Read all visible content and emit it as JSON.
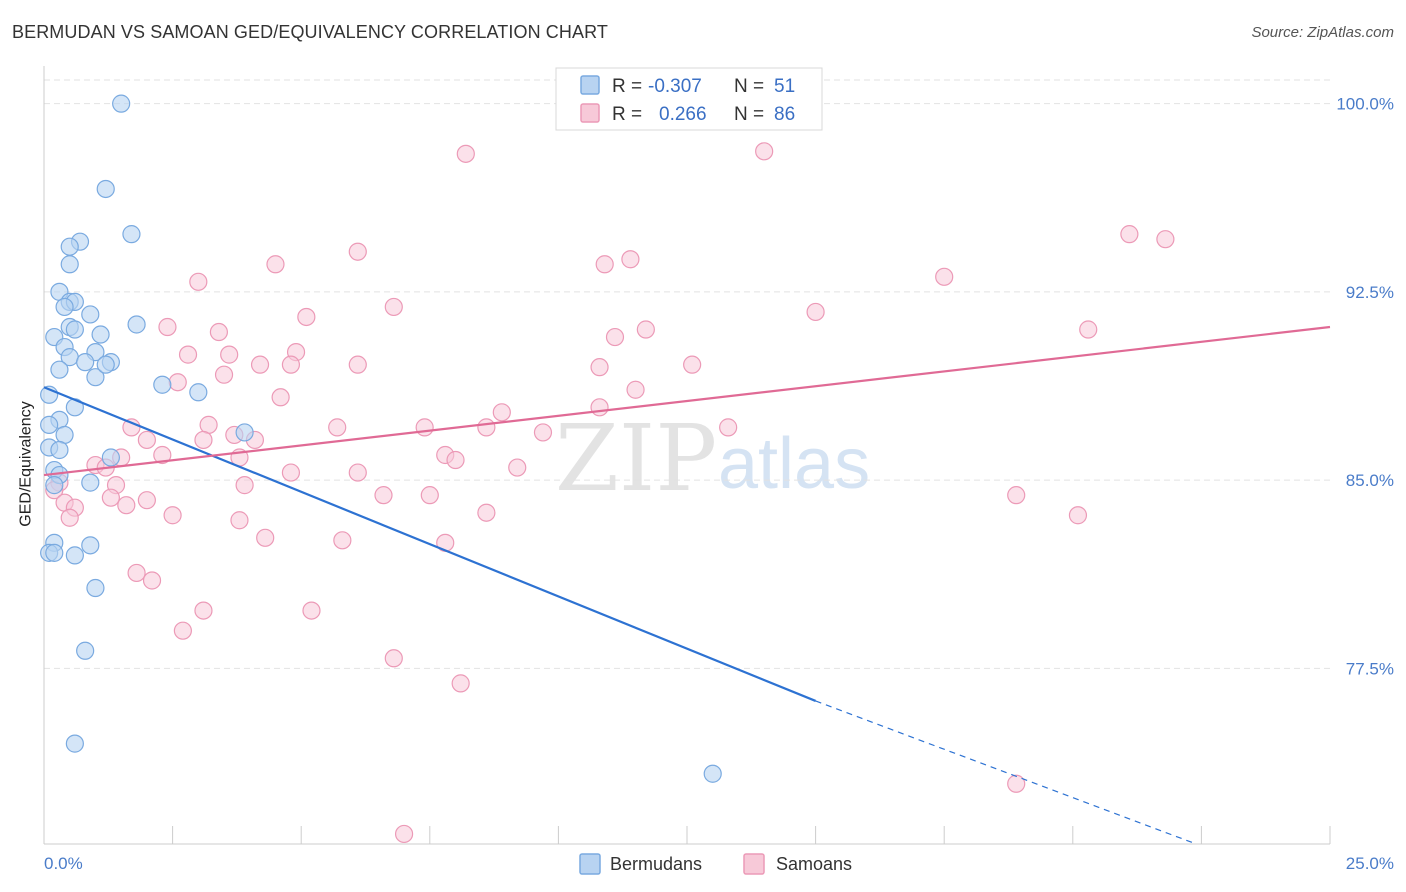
{
  "title": "BERMUDAN VS SAMOAN GED/EQUIVALENCY CORRELATION CHART",
  "source": "Source: ZipAtlas.com",
  "watermark": {
    "zip": "ZIP",
    "atlas": "atlas"
  },
  "colors": {
    "blue": "#7aaae0",
    "blue_fill": "#b8d3f1",
    "blue_line": "#2d72d2",
    "pink": "#ec9ab7",
    "pink_fill": "#f7c9d8",
    "pink_line": "#e06a95",
    "tick_text": "#4a7cc9"
  },
  "legend": {
    "rows": [
      {
        "r_label": "R =",
        "r_value": "-0.307",
        "n_label": "N =",
        "n_value": "51"
      },
      {
        "r_label": "R =",
        "r_value": "0.266",
        "n_label": "N =",
        "n_value": "86"
      }
    ]
  },
  "bottom_legend": [
    "Bermudans",
    "Samoans"
  ],
  "chart_data": {
    "type": "scatter",
    "title": "BERMUDAN VS SAMOAN GED/EQUIVALENCY CORRELATION CHART",
    "xlabel": "",
    "ylabel": "GED/Equivalency",
    "xlim": [
      0,
      25
    ],
    "ylim": [
      70.5,
      101.5
    ],
    "x_tick_labels": [
      "0.0%",
      "25.0%"
    ],
    "y_ticks": [
      77.5,
      85.0,
      92.5,
      100.0
    ],
    "y_tick_labels": [
      "77.5%",
      "85.0%",
      "92.5%",
      "100.0%"
    ],
    "series": [
      {
        "name": "Bermudans",
        "trend": {
          "x0": 0,
          "y0": 88.7,
          "x1": 15,
          "y1": 76.2,
          "dash_to_x": 22.4,
          "dash_to_y": 70.5
        },
        "points": [
          [
            1.5,
            100.0
          ],
          [
            1.2,
            96.6
          ],
          [
            1.7,
            94.8
          ],
          [
            0.7,
            94.5
          ],
          [
            0.5,
            94.3
          ],
          [
            0.5,
            93.6
          ],
          [
            0.3,
            92.5
          ],
          [
            0.5,
            92.1
          ],
          [
            0.6,
            92.1
          ],
          [
            0.4,
            91.9
          ],
          [
            0.9,
            91.6
          ],
          [
            0.5,
            91.1
          ],
          [
            1.8,
            91.2
          ],
          [
            1.1,
            90.8
          ],
          [
            0.6,
            91.0
          ],
          [
            0.2,
            90.7
          ],
          [
            0.4,
            90.3
          ],
          [
            1.0,
            90.1
          ],
          [
            0.5,
            89.9
          ],
          [
            0.8,
            89.7
          ],
          [
            1.3,
            89.7
          ],
          [
            0.3,
            89.4
          ],
          [
            1.0,
            89.1
          ],
          [
            1.2,
            89.6
          ],
          [
            2.3,
            88.8
          ],
          [
            3.0,
            88.5
          ],
          [
            0.1,
            88.4
          ],
          [
            0.6,
            87.9
          ],
          [
            0.3,
            87.4
          ],
          [
            0.1,
            87.2
          ],
          [
            0.4,
            86.8
          ],
          [
            3.9,
            86.9
          ],
          [
            0.1,
            86.3
          ],
          [
            0.3,
            86.2
          ],
          [
            1.3,
            85.9
          ],
          [
            0.2,
            85.4
          ],
          [
            0.3,
            85.2
          ],
          [
            0.9,
            84.9
          ],
          [
            0.2,
            84.8
          ],
          [
            0.9,
            82.4
          ],
          [
            0.2,
            82.5
          ],
          [
            0.1,
            82.1
          ],
          [
            0.2,
            82.1
          ],
          [
            0.6,
            82.0
          ],
          [
            1.0,
            80.7
          ],
          [
            0.8,
            78.2
          ],
          [
            0.6,
            74.5
          ],
          [
            13.0,
            73.3
          ]
        ]
      },
      {
        "name": "Samoans",
        "trend": {
          "x0": 0,
          "y0": 85.2,
          "x1": 25,
          "y1": 91.1
        },
        "points": [
          [
            8.2,
            98.0
          ],
          [
            14.0,
            98.1
          ],
          [
            21.1,
            94.8
          ],
          [
            21.8,
            94.6
          ],
          [
            6.1,
            94.1
          ],
          [
            11.4,
            93.8
          ],
          [
            4.5,
            93.6
          ],
          [
            10.9,
            93.6
          ],
          [
            17.5,
            93.1
          ],
          [
            3.0,
            92.9
          ],
          [
            6.8,
            91.9
          ],
          [
            15.0,
            91.7
          ],
          [
            5.1,
            91.5
          ],
          [
            2.4,
            91.1
          ],
          [
            3.4,
            90.9
          ],
          [
            11.7,
            91.0
          ],
          [
            20.3,
            91.0
          ],
          [
            11.1,
            90.7
          ],
          [
            4.9,
            90.1
          ],
          [
            2.8,
            90.0
          ],
          [
            3.6,
            90.0
          ],
          [
            4.8,
            89.6
          ],
          [
            6.1,
            89.6
          ],
          [
            4.2,
            89.6
          ],
          [
            10.8,
            89.5
          ],
          [
            12.6,
            89.6
          ],
          [
            3.5,
            89.2
          ],
          [
            2.6,
            88.9
          ],
          [
            11.5,
            88.6
          ],
          [
            4.6,
            88.3
          ],
          [
            10.8,
            87.9
          ],
          [
            8.9,
            87.7
          ],
          [
            1.7,
            87.1
          ],
          [
            3.2,
            87.2
          ],
          [
            5.7,
            87.1
          ],
          [
            7.4,
            87.1
          ],
          [
            8.6,
            87.1
          ],
          [
            13.3,
            87.1
          ],
          [
            9.7,
            86.9
          ],
          [
            3.7,
            86.8
          ],
          [
            2.0,
            86.6
          ],
          [
            3.1,
            86.6
          ],
          [
            4.1,
            86.6
          ],
          [
            2.3,
            86.0
          ],
          [
            1.5,
            85.9
          ],
          [
            3.8,
            85.9
          ],
          [
            7.8,
            86.0
          ],
          [
            8.0,
            85.8
          ],
          [
            1.0,
            85.6
          ],
          [
            1.2,
            85.5
          ],
          [
            4.8,
            85.3
          ],
          [
            6.1,
            85.3
          ],
          [
            9.2,
            85.5
          ],
          [
            0.3,
            84.9
          ],
          [
            1.4,
            84.8
          ],
          [
            3.9,
            84.8
          ],
          [
            0.2,
            84.6
          ],
          [
            1.3,
            84.3
          ],
          [
            2.0,
            84.2
          ],
          [
            6.6,
            84.4
          ],
          [
            7.5,
            84.4
          ],
          [
            0.4,
            84.1
          ],
          [
            1.6,
            84.0
          ],
          [
            0.6,
            83.9
          ],
          [
            2.5,
            83.6
          ],
          [
            3.8,
            83.4
          ],
          [
            8.6,
            83.7
          ],
          [
            18.9,
            84.4
          ],
          [
            20.1,
            83.6
          ],
          [
            0.5,
            83.5
          ],
          [
            4.3,
            82.7
          ],
          [
            5.8,
            82.6
          ],
          [
            7.8,
            82.5
          ],
          [
            1.8,
            81.3
          ],
          [
            2.1,
            81.0
          ],
          [
            3.1,
            79.8
          ],
          [
            5.2,
            79.8
          ],
          [
            2.7,
            79.0
          ],
          [
            6.8,
            77.9
          ],
          [
            8.1,
            76.9
          ],
          [
            18.9,
            72.9
          ],
          [
            7.0,
            70.9
          ]
        ]
      }
    ]
  }
}
